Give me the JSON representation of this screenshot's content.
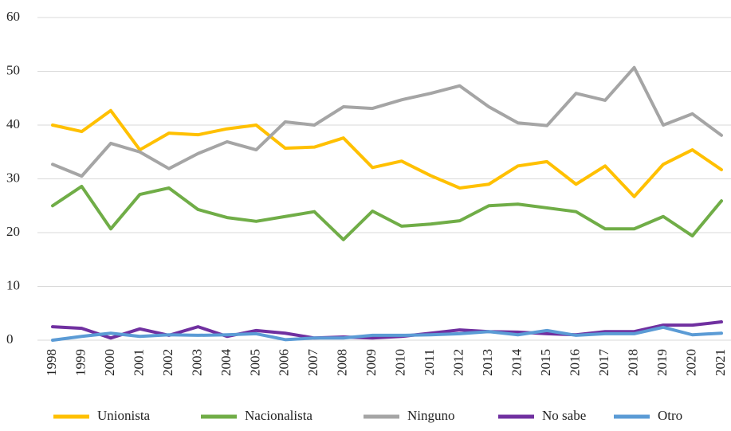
{
  "chart_data": {
    "type": "line",
    "categories": [
      "1998",
      "1999",
      "2000",
      "2001",
      "2002",
      "2003",
      "2004",
      "2005",
      "2006",
      "2007",
      "2008",
      "2009",
      "2010",
      "2011",
      "2012",
      "2013",
      "2014",
      "2015",
      "2016",
      "2017",
      "2018",
      "2019",
      "2020",
      "2021"
    ],
    "series": [
      {
        "name": "Unionista",
        "color": "#ffc000",
        "values": [
          40,
          38.8,
          42.7,
          35.4,
          38.5,
          38.2,
          39.3,
          40,
          35.7,
          35.9,
          37.6,
          32.1,
          33.3,
          30.6,
          28.3,
          29,
          32.4,
          33.2,
          29,
          32.4,
          26.7,
          32.7,
          35.4,
          31.7
        ]
      },
      {
        "name": "Nacionalista",
        "color": "#70ad47",
        "values": [
          25,
          28.6,
          20.7,
          27.1,
          28.3,
          24.3,
          22.8,
          22.1,
          23,
          23.9,
          18.7,
          24,
          21.2,
          21.6,
          22.2,
          25,
          25.3,
          24.6,
          23.9,
          20.7,
          20.7,
          23,
          19.4,
          25.9
        ]
      },
      {
        "name": "Ninguno",
        "color": "#a5a5a5",
        "values": [
          32.7,
          30.5,
          36.6,
          35,
          31.9,
          34.7,
          36.9,
          35.4,
          40.6,
          40,
          43.4,
          43.1,
          44.7,
          45.9,
          47.3,
          43.4,
          40.4,
          39.9,
          45.9,
          44.6,
          50.7,
          40,
          42.1,
          38.1
        ]
      },
      {
        "name": "No sabe",
        "color": "#7030a0",
        "values": [
          2.5,
          2.2,
          0.4,
          2.1,
          0.9,
          2.5,
          0.7,
          1.8,
          1.3,
          0.4,
          0.6,
          0.4,
          0.7,
          1.3,
          1.9,
          1.6,
          1.5,
          1.2,
          1,
          1.6,
          1.6,
          2.8,
          2.8,
          3.4
        ]
      },
      {
        "name": "Otro",
        "color": "#5b9bd5",
        "values": [
          0,
          0.7,
          1.3,
          0.7,
          1,
          0.9,
          1,
          1.2,
          0.1,
          0.4,
          0.4,
          0.9,
          0.9,
          1,
          1.2,
          1.6,
          1,
          1.8,
          0.9,
          1.2,
          1.2,
          2.4,
          1,
          1.3
        ]
      }
    ],
    "ylim": [
      0,
      60
    ],
    "yticks": [
      0,
      10,
      20,
      30,
      40,
      50,
      60
    ],
    "grid": true,
    "legend": "bottom"
  }
}
